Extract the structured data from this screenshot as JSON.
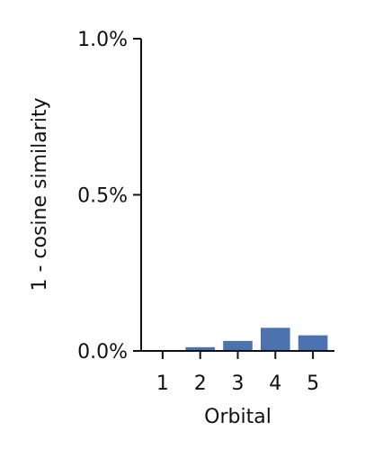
{
  "chart_data": {
    "type": "bar",
    "title": "",
    "xlabel": "Orbital",
    "ylabel": "1 - cosine similarity",
    "categories": [
      "1",
      "2",
      "3",
      "4",
      "5"
    ],
    "values": [
      0.0,
      0.012,
      0.032,
      0.074,
      0.05
    ],
    "value_unit": "percent",
    "ylim": [
      0,
      1.0
    ],
    "yticks": [
      0.0,
      0.5,
      1.0
    ],
    "ytick_labels": [
      "0.0%",
      "0.5%",
      "1.0%"
    ],
    "grid": false,
    "legend": "none",
    "bar_color": "#4c72b0"
  }
}
